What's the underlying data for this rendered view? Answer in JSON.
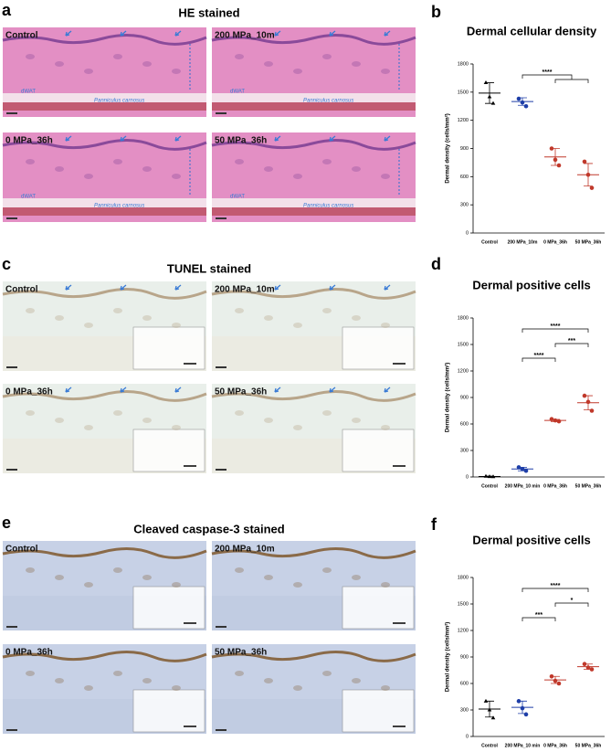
{
  "panels": [
    {
      "label": "a",
      "title": "HE stained",
      "tiles": [
        {
          "label": "Control",
          "notes": [
            "dWAT",
            "Panniculus carnosus"
          ]
        },
        {
          "label": "200 MPa_10m",
          "notes": [
            "dWAT",
            "Panniculus carnosus"
          ]
        },
        {
          "label": "0 MPa_36h",
          "notes": [
            "dWAT",
            "Panniculus carnosus"
          ]
        },
        {
          "label": "50 MPa_36h",
          "notes": [
            "dWAT",
            "Panniculus carnosus"
          ]
        }
      ]
    },
    {
      "label": "c",
      "title": "TUNEL stained",
      "tiles": [
        {
          "label": "Control",
          "notes": []
        },
        {
          "label": "200 MPa_10m",
          "notes": []
        },
        {
          "label": "0 MPa_36h",
          "notes": []
        },
        {
          "label": "50 MPa_36h",
          "notes": []
        }
      ]
    },
    {
      "label": "e",
      "title": "Cleaved caspase-3 stained",
      "tiles": [
        {
          "label": "Control",
          "notes": []
        },
        {
          "label": "200 MPa_10m",
          "notes": []
        },
        {
          "label": "0 MPa_36h",
          "notes": []
        },
        {
          "label": "50 MPa_36h",
          "notes": []
        }
      ]
    }
  ],
  "chart_data": [
    {
      "type": "scatter",
      "label": "b",
      "title": "Dermal cellular density",
      "ylabel": "Dermal density (cells/mm²)",
      "categories": [
        "Control",
        "200 MPa_10m",
        "0 MPa_36h",
        "50 MPa_36h"
      ],
      "colors": [
        "#000000",
        "#1f3fa8",
        "#c0392b",
        "#c0392b"
      ],
      "values": [
        1490,
        1400,
        810,
        620
      ],
      "errors": [
        110,
        40,
        90,
        120
      ],
      "points": [
        [
          1600,
          1450,
          1380
        ],
        [
          1430,
          1390,
          1350
        ],
        [
          900,
          780,
          720
        ],
        [
          760,
          620,
          480
        ]
      ],
      "ylim": [
        0,
        1800
      ],
      "yticks": [
        0,
        300,
        600,
        900,
        1200,
        1500,
        1800
      ],
      "annotations": [
        {
          "text": "****",
          "from": 1,
          "to": [
            2,
            3
          ]
        }
      ]
    },
    {
      "type": "scatter",
      "label": "d",
      "title": "Dermal positive cells",
      "ylabel": "Dermal density (cells/mm²)",
      "categories": [
        "Control",
        "200 MPa_10 min",
        "0 MPa_36h",
        "50 MPa_36h"
      ],
      "colors": [
        "#000000",
        "#1f3fa8",
        "#c0392b",
        "#c0392b"
      ],
      "values": [
        5,
        90,
        640,
        840
      ],
      "errors": [
        5,
        20,
        12,
        80
      ],
      "points": [
        [
          8,
          4,
          2
        ],
        [
          110,
          90,
          70
        ],
        [
          655,
          640,
          630
        ],
        [
          920,
          850,
          750
        ]
      ],
      "ylim": [
        0,
        1800
      ],
      "yticks": [
        0,
        300,
        600,
        900,
        1200,
        1500,
        1800
      ],
      "annotations": [
        {
          "text": "****",
          "from": 1,
          "to": 3
        },
        {
          "text": "***",
          "from": 2,
          "to": 3
        },
        {
          "text": "****",
          "from": 1,
          "to": 2
        }
      ]
    },
    {
      "type": "scatter",
      "label": "f",
      "title": "Dermal positive cells",
      "ylabel": "Dermal density (cells/mm²)",
      "categories": [
        "Control",
        "200 MPa_10 min",
        "0 MPa_36h",
        "50 MPa_36h"
      ],
      "colors": [
        "#000000",
        "#1f3fa8",
        "#c0392b",
        "#c0392b"
      ],
      "values": [
        310,
        330,
        640,
        790
      ],
      "errors": [
        90,
        70,
        40,
        30
      ],
      "points": [
        [
          400,
          300,
          210
        ],
        [
          400,
          320,
          250
        ],
        [
          680,
          630,
          600
        ],
        [
          820,
          780,
          760
        ]
      ],
      "ylim": [
        0,
        1800
      ],
      "yticks": [
        0,
        300,
        600,
        900,
        1200,
        1500,
        1800
      ],
      "annotations": [
        {
          "text": "****",
          "from": 1,
          "to": 3
        },
        {
          "text": "*",
          "from": 2,
          "to": 3
        },
        {
          "text": "***",
          "from": 1,
          "to": 2
        }
      ]
    }
  ]
}
